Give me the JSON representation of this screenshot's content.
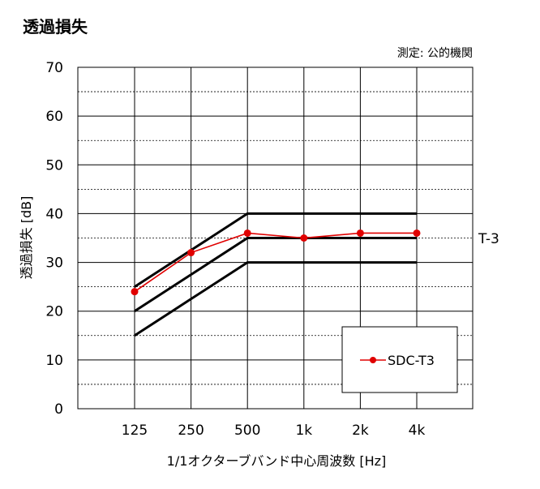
{
  "chart_data": {
    "type": "line",
    "title": "透過損失",
    "note": "測定: 公的機関",
    "categories": [
      "125",
      "250",
      "500",
      "1k",
      "2k",
      "4k"
    ],
    "xlabel": "1/1オクターブバンド中心周波数 [Hz]",
    "ylabel": "透過損失 [dB]",
    "ylim": [
      0,
      70
    ],
    "yticks": [
      "0",
      "10",
      "20",
      "30",
      "40",
      "50",
      "60",
      "70"
    ],
    "grid": {
      "major_y": 10,
      "minor_y_dashed": 5,
      "vertical": true
    },
    "legend_position": "bottom-right",
    "series": [
      {
        "name": "SDC-T3",
        "color": "#e00000",
        "marker": "circle",
        "values": [
          24,
          32,
          36,
          35,
          36,
          36
        ]
      }
    ],
    "reference_curves": {
      "label": "T-3",
      "color": "#000000",
      "lines": [
        {
          "values": [
            25,
            32.5,
            40,
            40,
            40,
            40
          ]
        },
        {
          "values": [
            20,
            27.5,
            35,
            35,
            35,
            35
          ]
        },
        {
          "values": [
            15,
            22.5,
            30,
            30,
            30,
            30
          ]
        }
      ]
    }
  }
}
